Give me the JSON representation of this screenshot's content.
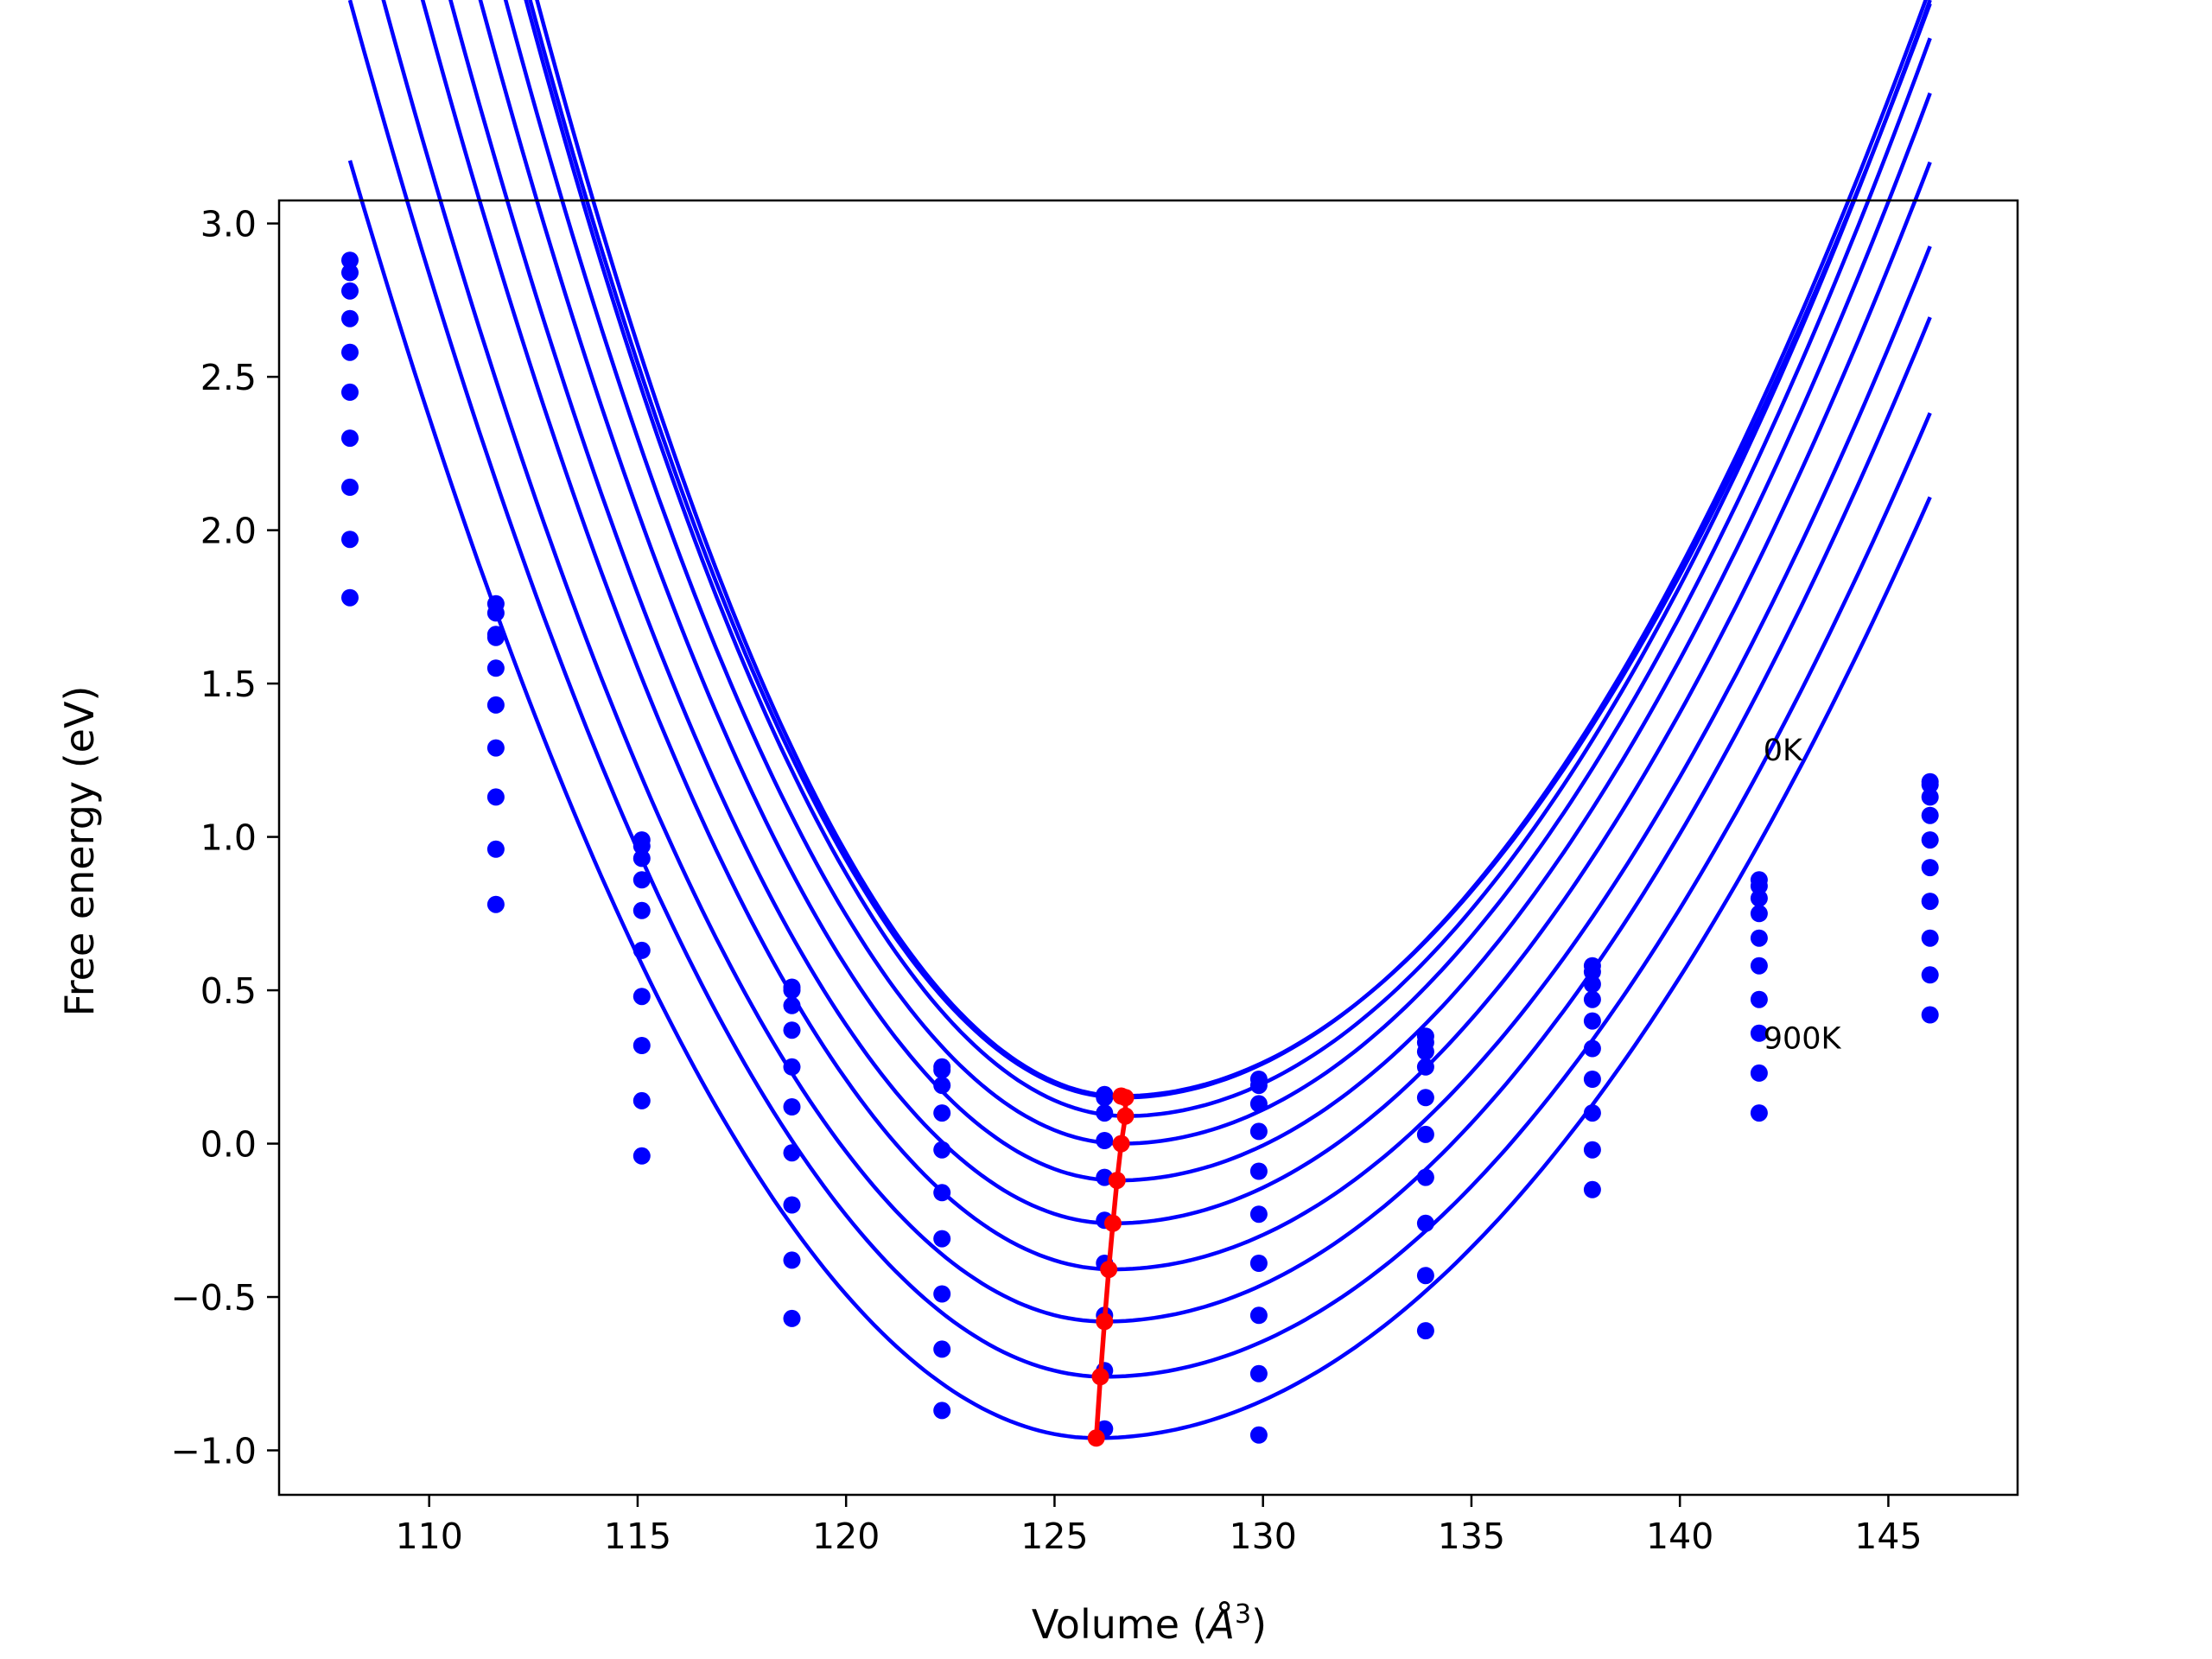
{
  "chart_data": {
    "type": "line",
    "xlabel": {
      "prefix": "Volume (",
      "symbol": "Å",
      "superscript": "3",
      "suffix": ")"
    },
    "ylabel": "Free energy (eV)",
    "xlim": [
      106.4,
      148.1
    ],
    "ylim": [
      -1.145,
      3.075
    ],
    "xticks": [
      110,
      115,
      120,
      125,
      130,
      135,
      140,
      145
    ],
    "yticks": [
      -1.0,
      -0.5,
      0.0,
      0.5,
      1.0,
      1.5,
      2.0,
      2.5,
      3.0
    ],
    "ytick_labels": [
      "−1.0",
      "−0.5",
      "0.0",
      "0.5",
      "1.0",
      "1.5",
      "2.0",
      "2.5",
      "3.0"
    ],
    "grid": false,
    "annotations": [
      {
        "text": "0K",
        "x": 142.0,
        "y": 1.25
      },
      {
        "text": "900K",
        "x": 142.0,
        "y": 0.31
      }
    ],
    "colors": {
      "fit": "#0000ff",
      "points": "#0000ff",
      "minima": "#ff0000"
    },
    "volumes": [
      108.1,
      111.6,
      115.1,
      118.7,
      122.3,
      126.2,
      129.9,
      133.9,
      137.9,
      141.9,
      146.0
    ],
    "series": [
      {
        "V0": 126.6,
        "E0": 0.155,
        "A": 0.0182,
        "right_scale": 0.52,
        "points": [
          2.88,
          1.76,
          0.99,
          0.51,
          0.25,
          0.16,
          0.21,
          0.35,
          0.58,
          0.86,
          1.18
        ]
      },
      {
        "V0": 126.6,
        "E0": 0.15,
        "A": 0.0178,
        "right_scale": 0.54,
        "points": [
          2.84,
          1.73,
          0.97,
          0.5,
          0.24,
          0.15,
          0.19,
          0.33,
          0.56,
          0.84,
          1.17
        ]
      },
      {
        "V0": 126.7,
        "E0": 0.09,
        "A": 0.0176,
        "right_scale": 0.555,
        "points": [
          2.78,
          1.66,
          0.93,
          0.45,
          0.19,
          0.1,
          0.13,
          0.3,
          0.52,
          0.8,
          1.13
        ]
      },
      {
        "V0": 126.6,
        "E0": 0.0,
        "A": 0.0171,
        "right_scale": 0.56,
        "points": [
          2.69,
          1.65,
          0.86,
          0.37,
          0.1,
          0.01,
          0.04,
          0.25,
          0.47,
          0.75,
          1.07
        ]
      },
      {
        "V0": 126.5,
        "E0": -0.12,
        "A": 0.0165,
        "right_scale": 0.565,
        "points": [
          2.58,
          1.55,
          0.76,
          0.25,
          -0.02,
          -0.11,
          -0.09,
          0.15,
          0.4,
          0.67,
          0.99
        ]
      },
      {
        "V0": 126.4,
        "E0": -0.26,
        "A": 0.0158,
        "right_scale": 0.57,
        "points": [
          2.45,
          1.43,
          0.63,
          0.12,
          -0.16,
          -0.25,
          -0.23,
          0.03,
          0.31,
          0.58,
          0.9
        ]
      },
      {
        "V0": 126.4,
        "E0": -0.41,
        "A": 0.0151,
        "right_scale": 0.575,
        "points": [
          2.3,
          1.29,
          0.48,
          -0.03,
          -0.31,
          -0.39,
          -0.39,
          -0.11,
          0.21,
          0.47,
          0.79
        ]
      },
      {
        "V0": 126.2,
        "E0": -0.58,
        "A": 0.0144,
        "right_scale": 0.58,
        "points": [
          2.14,
          1.13,
          0.32,
          -0.2,
          -0.49,
          -0.56,
          -0.56,
          -0.26,
          0.1,
          0.36,
          0.67
        ]
      },
      {
        "V0": 126.2,
        "E0": -0.76,
        "A": 0.0137,
        "right_scale": 0.585,
        "points": [
          1.97,
          0.96,
          0.14,
          -0.38,
          -0.67,
          -0.74,
          -0.75,
          -0.43,
          -0.02,
          0.23,
          0.55
        ]
      },
      {
        "V0": 126.0,
        "E0": -0.96,
        "A": 0.013,
        "right_scale": 0.59,
        "points": [
          1.78,
          0.78,
          -0.04,
          -0.57,
          -0.87,
          -0.93,
          -0.95,
          -0.61,
          -0.15,
          0.1,
          0.42
        ]
      }
    ],
    "minima": {
      "x": [
        126.6,
        126.7,
        126.7,
        126.6,
        126.5,
        126.4,
        126.3,
        126.2,
        126.1,
        126.0
      ],
      "y": [
        0.155,
        0.15,
        0.09,
        0.0,
        -0.12,
        -0.26,
        -0.41,
        -0.58,
        -0.76,
        -0.96
      ]
    }
  }
}
